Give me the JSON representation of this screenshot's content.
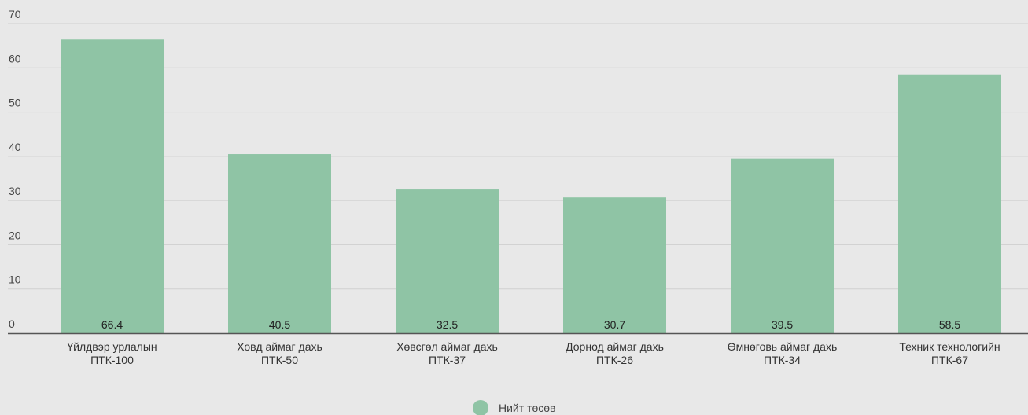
{
  "chart_data": {
    "type": "bar",
    "categories": [
      [
        "Үйлдвэр урлалын",
        "ПТК-100"
      ],
      [
        "Ховд аймаг дахь",
        "ПТК-50"
      ],
      [
        "Хөвсгөл аймаг дахь",
        "ПТК-37"
      ],
      [
        "Дорнод аймаг дахь",
        "ПТК-26"
      ],
      [
        "Өмнөговь аймаг дахь",
        "ПТК-34"
      ],
      [
        "Техник технологийн",
        "ПТК-67"
      ]
    ],
    "series": [
      {
        "name": "Нийт төсөв",
        "values": [
          66.4,
          40.5,
          32.5,
          30.7,
          39.5,
          58.5
        ],
        "data_labels": [
          "66.4",
          "40.5",
          "32.5",
          "30.7",
          "39.5",
          "58.5"
        ],
        "color": "#8fc4a5"
      }
    ],
    "ylim": [
      0,
      70
    ],
    "yticks": [
      0,
      10,
      20,
      30,
      40,
      50,
      60,
      70
    ],
    "ytick_labels": [
      "0",
      "10",
      "20",
      "30",
      "40",
      "50",
      "60",
      "70"
    ],
    "grid": true,
    "legend_position": "bottom-center",
    "colors": {
      "background": "#e8e8e8",
      "grid": "#cfcfcf",
      "axis": "#555555"
    }
  }
}
